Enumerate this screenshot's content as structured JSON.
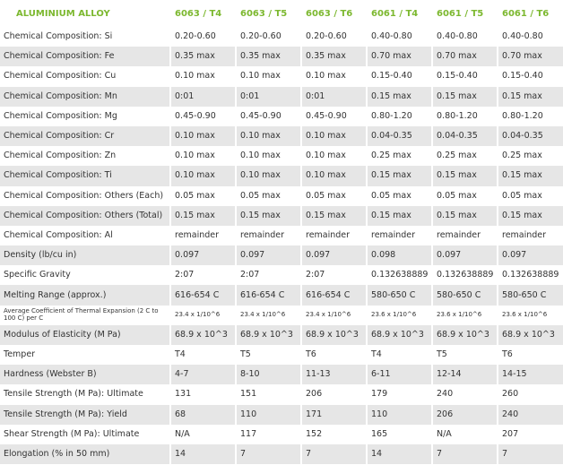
{
  "table": {
    "header": [
      "ALUMINIUM ALLOY",
      "6063 / T4",
      "6063 / T5",
      "6063 / T6",
      "6061 / T4",
      "6061 / T5",
      "6061 / T6"
    ],
    "rows": [
      [
        "Chemical Composition: Si",
        "0.20-0.60",
        "0.20-0.60",
        "0.20-0.60",
        "0.40-0.80",
        "0.40-0.80",
        "0.40-0.80"
      ],
      [
        "Chemical Composition: Fe",
        "0.35 max",
        "0.35 max",
        "0.35 max",
        "0.70 max",
        "0.70 max",
        "0.70 max"
      ],
      [
        "Chemical Composition: Cu",
        "0.10 max",
        "0.10 max",
        "0.10 max",
        "0.15-0.40",
        "0.15-0.40",
        "0.15-0.40"
      ],
      [
        "Chemical Composition: Mn",
        "0:01",
        "0:01",
        "0:01",
        "0.15 max",
        "0.15 max",
        "0.15 max"
      ],
      [
        "Chemical Composition: Mg",
        "0.45-0.90",
        "0.45-0.90",
        "0.45-0.90",
        "0.80-1.20",
        "0.80-1.20",
        "0.80-1.20"
      ],
      [
        "Chemical Composition: Cr",
        "0.10 max",
        "0.10 max",
        "0.10 max",
        "0.04-0.35",
        "0.04-0.35",
        "0.04-0.35"
      ],
      [
        "Chemical Composition: Zn",
        "0.10 max",
        "0.10 max",
        "0.10 max",
        "0.25 max",
        "0.25 max",
        "0.25 max"
      ],
      [
        "Chemical Composition: Ti",
        "0.10 max",
        "0.10 max",
        "0.10 max",
        "0.15 max",
        "0.15 max",
        "0.15 max"
      ],
      [
        "Chemical Composition: Others (Each)",
        "0.05 max",
        "0.05 max",
        "0.05 max",
        "0.05 max",
        "0.05 max",
        "0.05 max"
      ],
      [
        "Chemical Composition: Others (Total)",
        "0.15 max",
        "0.15 max",
        "0.15 max",
        "0.15 max",
        "0.15 max",
        "0.15 max"
      ],
      [
        "Chemical Composition: Al",
        "remainder",
        "remainder",
        "remainder",
        "remainder",
        "remainder",
        "remainder"
      ],
      [
        "Density (lb/cu in)",
        "0.097",
        "0.097",
        "0.097",
        "0.098",
        "0.097",
        "0.097"
      ],
      [
        "Specific Gravity",
        "2:07",
        "2:07",
        "2:07",
        "0.132638889",
        "0.132638889",
        "0.132638889"
      ],
      [
        "Melting Range (approx.)",
        "616-654 C",
        "616-654 C",
        "616-654 C",
        "580-650 C",
        "580-650 C",
        "580-650 C"
      ],
      [
        "Average Coefficient of Thermal Expansion (2 C to 100 C) per C",
        "23.4 x 1/10^6",
        "23.4 x 1/10^6",
        "23.4 x 1/10^6",
        "23.6 x 1/10^6",
        "23.6 x 1/10^6",
        "23.6 x 1/10^6"
      ],
      [
        "Modulus of Elasticity (M Pa)",
        "68.9 x 10^3",
        "68.9 x 10^3",
        "68.9 x 10^3",
        "68.9 x 10^3",
        "68.9 x 10^3",
        "68.9 x 10^3"
      ],
      [
        "Temper",
        "T4",
        "T5",
        "T6",
        "T4",
        "T5",
        "T6"
      ],
      [
        "Hardness (Webster B)",
        "4-7",
        "8-10",
        "11-13",
        "6-11",
        "12-14",
        "14-15"
      ],
      [
        "Tensile Strength (M Pa): Ultimate",
        "131",
        "151",
        "206",
        "179",
        "240",
        "260"
      ],
      [
        "Tensile Strength (M Pa): Yield",
        "68",
        "110",
        "171",
        "110",
        "206",
        "240"
      ],
      [
        "Shear Strength (M Pa): Ultimate",
        "N/A",
        "117",
        "152",
        "165",
        "N/A",
        "207"
      ],
      [
        "Elongation (% in 50 mm)",
        "14",
        "7",
        "7",
        "14",
        "7",
        "7"
      ]
    ]
  }
}
